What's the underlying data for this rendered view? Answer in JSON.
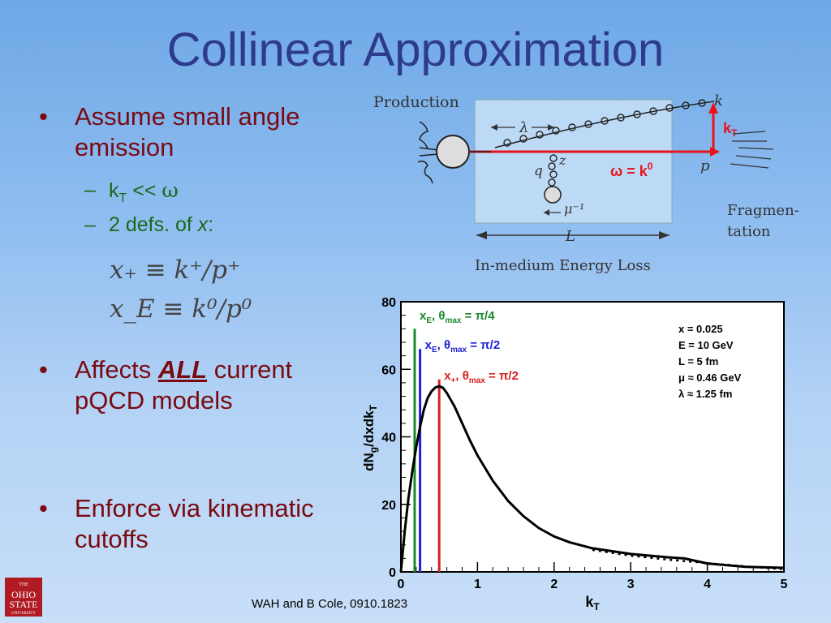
{
  "slide": {
    "title": "Collinear Approximation",
    "citation": "WAH and B Cole, 0910.1823"
  },
  "bullets": [
    {
      "text": "Assume small angle emission"
    },
    {
      "text_prefix": "Affects ",
      "emph": "ALL",
      "text_suffix": " current pQCD models"
    },
    {
      "text": "Enforce via kinematic cutoffs"
    }
  ],
  "subbullets": [
    {
      "k": "k",
      "sub": "T",
      "rel": " << ",
      "omega": "ω"
    },
    {
      "pre": "2 defs. of ",
      "var": "x",
      "post": ":"
    }
  ],
  "equations": {
    "eq1": "x₊ ≡ k⁺/p⁺",
    "eq2": "x_E ≡ k⁰/p⁰"
  },
  "logo": {
    "line1": "THE",
    "line2": "OHIO",
    "line3": "STATE",
    "line4": "UNIVERSITY"
  },
  "diagram": {
    "production": "Production",
    "lambda": "λ",
    "q": "q",
    "z": "z",
    "mu": "μ⁻¹",
    "L": "L",
    "k": "k",
    "p": "p",
    "kT": "k",
    "kT_sub": "T",
    "omega_eq": "ω = k",
    "omega_sup": "0",
    "fragmentation1": "Fragmen-",
    "fragmentation2": "tation",
    "caption": "In-medium Energy Loss",
    "colors": {
      "box": "#bcd9f6",
      "red": "#e8141c"
    }
  },
  "chart_data": {
    "type": "line",
    "xlabel": "k",
    "xlabel_sub": "T",
    "ylabel": "dN",
    "ylabel_sub1": "g",
    "ylabel_mid": "/dxdk",
    "ylabel_sub2": "T",
    "xlim": [
      0,
      5
    ],
    "ylim": [
      0,
      80
    ],
    "xticks": [
      0,
      1,
      2,
      3,
      4,
      5
    ],
    "yticks": [
      0,
      20,
      40,
      60,
      80
    ],
    "series": [
      {
        "style": "solid",
        "x": [
          0,
          0.05,
          0.1,
          0.15,
          0.2,
          0.25,
          0.3,
          0.35,
          0.4,
          0.45,
          0.5,
          0.55,
          0.6,
          0.7,
          0.8,
          0.9,
          1.0,
          1.2,
          1.4,
          1.6,
          1.8,
          2.0,
          2.2,
          2.5,
          3.0,
          3.5,
          3.7,
          4.0,
          4.5,
          5.0
        ],
        "y": [
          0,
          12,
          22,
          30,
          37,
          43,
          48,
          51.5,
          53.5,
          54.6,
          55,
          54.5,
          53,
          49,
          44,
          39,
          34.5,
          27,
          21,
          16.5,
          13,
          10.5,
          8.8,
          7,
          5.3,
          4.3,
          4.0,
          2.5,
          1.5,
          1.2
        ]
      },
      {
        "style": "dotted",
        "x": [
          2.5,
          3.0,
          3.5,
          4.0,
          4.5,
          5.0
        ],
        "y": [
          6.5,
          4.8,
          3.6,
          2.6,
          1.6,
          0.8
        ]
      }
    ],
    "cutoffs": [
      {
        "x": 0.18,
        "color": "#1a8a2a",
        "top": 72,
        "label": "x",
        "label_sub": "E",
        "label_rest": ", θ",
        "label_sub2": "max",
        "label_end": " = π/4"
      },
      {
        "x": 0.25,
        "color": "#1a22d6",
        "top": 66,
        "label": "x",
        "label_sub": "E",
        "label_rest": ", θ",
        "label_sub2": "max",
        "label_end": " = π/2"
      },
      {
        "x": 0.5,
        "color": "#d62020",
        "top": 57,
        "label": "x",
        "label_sub": "+",
        "label_rest": ", θ",
        "label_sub2": "max",
        "label_end": " = π/2"
      }
    ],
    "params": [
      "x = 0.025",
      "E = 10 GeV",
      "L = 5 fm",
      "μ ≈ 0.46 GeV",
      "λ ≈ 1.25 fm"
    ]
  }
}
